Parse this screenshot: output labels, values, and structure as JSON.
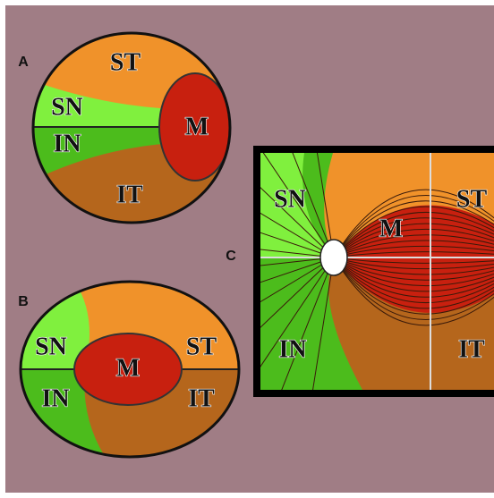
{
  "panels": [
    {
      "label": "A",
      "regions": [
        "ST",
        "SN",
        "M",
        "IN",
        "IT"
      ]
    },
    {
      "label": "B",
      "regions": [
        "SN",
        "M",
        "ST",
        "IN",
        "IT"
      ]
    },
    {
      "label": "C",
      "regions": [
        "SN",
        "M",
        "ST",
        "IN",
        "IT"
      ]
    }
  ]
}
